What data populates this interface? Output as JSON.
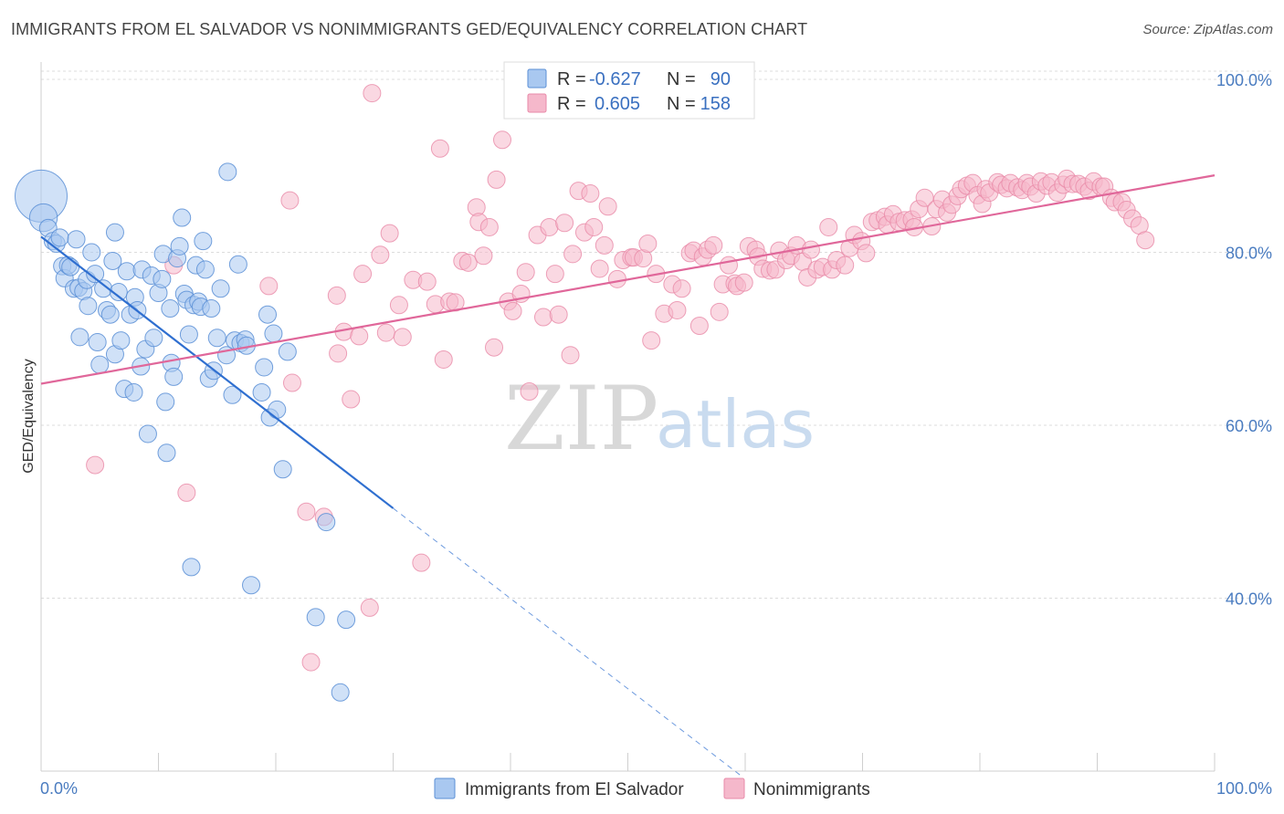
{
  "header": {
    "title": "IMMIGRANTS FROM EL SALVADOR VS NONIMMIGRANTS GED/EQUIVALENCY CORRELATION CHART",
    "source": "Source: ZipAtlas.com"
  },
  "legend": {
    "rows": [
      {
        "r_label": "R =",
        "r_value": "-0.627",
        "n_label": "N =",
        "n_value": "90",
        "color": "#a9c8f0"
      },
      {
        "r_label": "R =",
        "r_value": "0.605",
        "n_label": "N =",
        "n_value": "158",
        "color": "#f5b8cb"
      }
    ]
  },
  "bottom_legend": [
    {
      "label": "Immigrants from El Salvador",
      "color": "#a9c8f0"
    },
    {
      "label": "Nonimmigrants",
      "color": "#f5b8cb"
    }
  ],
  "watermark": {
    "zip": "ZIP",
    "atlas": "atlas"
  },
  "chart_data": {
    "type": "scatter",
    "title": "IMMIGRANTS FROM EL SALVADOR VS NONIMMIGRANTS GED/EQUIVALENCY CORRELATION CHART",
    "xlabel": "",
    "ylabel": "GED/Equivalency",
    "xlim": [
      0,
      100
    ],
    "ylim": [
      20,
      102
    ],
    "x_tick_labels": [
      "0.0%",
      "100.0%"
    ],
    "y_ticks": [
      40,
      60,
      80,
      100
    ],
    "y_tick_labels": [
      "40.0%",
      "60.0%",
      "80.0%",
      "100.0%"
    ],
    "grid": true,
    "legend_position": "top-center",
    "colors": {
      "blue_fill": "#a9c8f0",
      "blue_stroke": "#5b8fd6",
      "blue_line": "#2f6fd0",
      "pink_fill": "#f5b8cb",
      "pink_stroke": "#e88aa8",
      "pink_line": "#e0679a"
    },
    "series": [
      {
        "name": "Immigrants from El Salvador",
        "r": -0.627,
        "n": 90,
        "trend": {
          "x": [
            0,
            30
          ],
          "y": [
            81.8,
            50.4
          ],
          "dashed_to": [
            59.8,
            19.3
          ]
        },
        "points": [
          [
            0,
            86.5,
            3
          ],
          [
            0.2,
            84,
            1.6
          ],
          [
            0.6,
            82.8,
            1
          ],
          [
            1,
            81.3,
            1
          ],
          [
            1.3,
            81,
            1
          ],
          [
            1.6,
            81.7,
            1
          ],
          [
            1.8,
            78.4,
            1
          ],
          [
            2,
            77,
            1
          ],
          [
            2.3,
            78.5,
            1
          ],
          [
            2.5,
            78.3,
            1
          ],
          [
            2.8,
            75.8,
            1
          ],
          [
            3,
            81.5,
            1
          ],
          [
            3.2,
            75.9,
            1
          ],
          [
            3.6,
            75.5,
            1
          ],
          [
            3.3,
            70.2,
            1
          ],
          [
            3.9,
            76.8,
            1
          ],
          [
            4,
            73.8,
            1
          ],
          [
            4.3,
            80,
            1
          ],
          [
            4.6,
            77.5,
            1
          ],
          [
            4.8,
            69.6,
            1
          ],
          [
            5,
            67,
            1
          ],
          [
            5.3,
            75.8,
            1
          ],
          [
            5.6,
            73.3,
            1
          ],
          [
            5.9,
            72.8,
            1
          ],
          [
            6.1,
            79,
            1
          ],
          [
            6.3,
            68.2,
            1
          ],
          [
            6.6,
            75.4,
            1
          ],
          [
            6.3,
            82.3,
            1
          ],
          [
            6.8,
            69.8,
            1
          ],
          [
            7.1,
            64.2,
            1
          ],
          [
            7.3,
            77.8,
            1
          ],
          [
            7.6,
            72.8,
            1
          ],
          [
            7.9,
            63.8,
            1
          ],
          [
            8,
            74.8,
            1
          ],
          [
            8.2,
            73.3,
            1
          ],
          [
            8.5,
            66.8,
            1
          ],
          [
            8.6,
            78,
            1
          ],
          [
            8.9,
            68.8,
            1
          ],
          [
            9.1,
            59,
            1
          ],
          [
            9.4,
            77.3,
            1
          ],
          [
            9.6,
            70.1,
            1
          ],
          [
            10,
            75.3,
            1
          ],
          [
            10.3,
            76.9,
            1
          ],
          [
            10.4,
            79.8,
            1
          ],
          [
            10.6,
            62.7,
            1
          ],
          [
            10.7,
            56.8,
            1
          ],
          [
            11,
            73.5,
            1
          ],
          [
            11.1,
            67.2,
            1
          ],
          [
            11.3,
            65.6,
            1
          ],
          [
            11.6,
            79.3,
            1
          ],
          [
            11.8,
            80.7,
            1
          ],
          [
            12,
            84,
            1
          ],
          [
            12.2,
            75.2,
            1
          ],
          [
            12.4,
            74.5,
            1
          ],
          [
            12.6,
            70.5,
            1
          ],
          [
            12.8,
            43.6,
            1
          ],
          [
            13,
            73.9,
            1
          ],
          [
            13.2,
            78.5,
            1
          ],
          [
            13.4,
            74.3,
            1
          ],
          [
            13.6,
            73.7,
            1
          ],
          [
            13.8,
            81.3,
            1
          ],
          [
            14,
            78,
            1
          ],
          [
            14.3,
            65.4,
            1
          ],
          [
            14.5,
            73.5,
            1
          ],
          [
            14.7,
            66.3,
            1
          ],
          [
            15,
            70.1,
            1
          ],
          [
            15.3,
            75.8,
            1
          ],
          [
            15.8,
            68.1,
            1
          ],
          [
            15.9,
            89.3,
            1
          ],
          [
            16.3,
            63.5,
            1
          ],
          [
            16.5,
            69.8,
            1
          ],
          [
            16.8,
            78.6,
            1
          ],
          [
            17,
            69.5,
            1
          ],
          [
            17.4,
            69.9,
            1
          ],
          [
            17.5,
            69.2,
            1
          ],
          [
            17.9,
            41.5,
            1
          ],
          [
            18.8,
            63.8,
            1
          ],
          [
            19,
            66.7,
            1
          ],
          [
            19.3,
            72.8,
            1
          ],
          [
            19.5,
            60.9,
            1
          ],
          [
            19.8,
            70.6,
            1
          ],
          [
            20.1,
            61.8,
            1
          ],
          [
            20.6,
            54.9,
            1
          ],
          [
            21,
            68.5,
            1
          ],
          [
            23.4,
            37.8,
            1
          ],
          [
            24.3,
            48.8,
            1
          ],
          [
            25.5,
            29.1,
            1
          ],
          [
            26,
            37.5,
            1
          ]
        ]
      },
      {
        "name": "Nonimmigrants",
        "r": 0.605,
        "n": 158,
        "trend": {
          "x": [
            0,
            100
          ],
          "y": [
            64.8,
            88.9
          ]
        },
        "points": [
          [
            4.6,
            55.4
          ],
          [
            11.3,
            78.5
          ],
          [
            12.4,
            52.2
          ],
          [
            19.4,
            76.1
          ],
          [
            21.2,
            86
          ],
          [
            21.4,
            64.9
          ],
          [
            22.6,
            50
          ],
          [
            23,
            32.6
          ],
          [
            24.1,
            49.4
          ],
          [
            25.2,
            75
          ],
          [
            25.3,
            68.3
          ],
          [
            25.8,
            70.8
          ],
          [
            26.4,
            63
          ],
          [
            27.1,
            70.3
          ],
          [
            27.4,
            77.5
          ],
          [
            28,
            38.9
          ],
          [
            28.2,
            98.4
          ],
          [
            28.9,
            79.7
          ],
          [
            29.4,
            70.7
          ],
          [
            29.7,
            82.2
          ],
          [
            30.5,
            73.9
          ],
          [
            30.8,
            70.2
          ],
          [
            31.7,
            76.8
          ],
          [
            32.4,
            44.1
          ],
          [
            32.9,
            76.6
          ],
          [
            33.6,
            74
          ],
          [
            34,
            92
          ],
          [
            34.3,
            67.6
          ],
          [
            34.8,
            74.3
          ],
          [
            35.3,
            74.2
          ],
          [
            35.9,
            79
          ],
          [
            36.4,
            78.8
          ],
          [
            37.1,
            85.2
          ],
          [
            37.3,
            83.5
          ],
          [
            37.7,
            79.6
          ],
          [
            38.2,
            82.9
          ],
          [
            38.6,
            69
          ],
          [
            38.8,
            88.4
          ],
          [
            39.3,
            93
          ],
          [
            39.8,
            74.3
          ],
          [
            40.2,
            73.2
          ],
          [
            40.9,
            75.2
          ],
          [
            41.3,
            77.7
          ],
          [
            41.6,
            63.9
          ],
          [
            42.3,
            82
          ],
          [
            42.8,
            72.5
          ],
          [
            43.3,
            82.9
          ],
          [
            43.8,
            77.5
          ],
          [
            44.1,
            72.8
          ],
          [
            44.6,
            83.4
          ],
          [
            45.1,
            68.1
          ],
          [
            45.3,
            79.8
          ],
          [
            45.8,
            87.1
          ],
          [
            46.3,
            82.3
          ],
          [
            46.8,
            86.8
          ],
          [
            47.1,
            82.9
          ],
          [
            47.6,
            78.1
          ],
          [
            48,
            80.8
          ],
          [
            48.3,
            85.3
          ],
          [
            49.1,
            76.9
          ],
          [
            49.6,
            79.1
          ],
          [
            50.3,
            79.4
          ],
          [
            50.5,
            79.4
          ],
          [
            51.3,
            79.3
          ],
          [
            51.7,
            81
          ],
          [
            52,
            69.8
          ],
          [
            52.4,
            77.5
          ],
          [
            53.1,
            72.9
          ],
          [
            53.8,
            76.3
          ],
          [
            54.2,
            73.3
          ],
          [
            54.6,
            75.8
          ],
          [
            55.3,
            79.9
          ],
          [
            55.6,
            80.2
          ],
          [
            56.1,
            71.5
          ],
          [
            56.4,
            79.5
          ],
          [
            56.8,
            80.3
          ],
          [
            57.3,
            80.8
          ],
          [
            57.8,
            73.1
          ],
          [
            58.1,
            76.3
          ],
          [
            58.6,
            78.5
          ],
          [
            59.1,
            76.4
          ],
          [
            59.3,
            76.1
          ],
          [
            59.9,
            76.5
          ],
          [
            60.3,
            80.7
          ],
          [
            60.9,
            80.3
          ],
          [
            61.1,
            79.5
          ],
          [
            61.5,
            78.1
          ],
          [
            62.1,
            77.9
          ],
          [
            62.6,
            78
          ],
          [
            62.9,
            80.2
          ],
          [
            63.5,
            79.1
          ],
          [
            63.9,
            79.6
          ],
          [
            64.4,
            80.8
          ],
          [
            64.9,
            78.9
          ],
          [
            65.3,
            77.1
          ],
          [
            65.6,
            80.3
          ],
          [
            66.1,
            78
          ],
          [
            66.6,
            78.3
          ],
          [
            67.1,
            82.9
          ],
          [
            67.4,
            78
          ],
          [
            67.8,
            79.1
          ],
          [
            68.5,
            78.5
          ],
          [
            68.9,
            80.5
          ],
          [
            69.3,
            82
          ],
          [
            69.9,
            81.3
          ],
          [
            70.3,
            79.9
          ],
          [
            70.8,
            83.5
          ],
          [
            71.3,
            83.7
          ],
          [
            71.9,
            84.1
          ],
          [
            72.1,
            83.2
          ],
          [
            72.6,
            84.4
          ],
          [
            73.1,
            83.5
          ],
          [
            73.6,
            83.7
          ],
          [
            74.2,
            83.8
          ],
          [
            74.4,
            82.9
          ],
          [
            74.8,
            85
          ],
          [
            75.3,
            86.3
          ],
          [
            75.9,
            83
          ],
          [
            76.3,
            85
          ],
          [
            76.8,
            86.1
          ],
          [
            77.2,
            84.6
          ],
          [
            77.6,
            85.5
          ],
          [
            78.1,
            86.5
          ],
          [
            78.4,
            87.3
          ],
          [
            78.9,
            87.7
          ],
          [
            79.4,
            88
          ],
          [
            79.8,
            86.6
          ],
          [
            80.2,
            85.6
          ],
          [
            80.5,
            87.3
          ],
          [
            80.8,
            86.9
          ],
          [
            81.5,
            88.1
          ],
          [
            81.8,
            87.8
          ],
          [
            82.3,
            87.4
          ],
          [
            82.6,
            88
          ],
          [
            83.2,
            87.5
          ],
          [
            83.6,
            87.2
          ],
          [
            84,
            88
          ],
          [
            84.3,
            87.6
          ],
          [
            84.8,
            86.8
          ],
          [
            85.2,
            88.2
          ],
          [
            85.7,
            87.7
          ],
          [
            86.1,
            88.1
          ],
          [
            86.6,
            86.9
          ],
          [
            87.1,
            87.8
          ],
          [
            87.4,
            88.5
          ],
          [
            87.9,
            87.9
          ],
          [
            88.4,
            87.9
          ],
          [
            88.9,
            87.6
          ],
          [
            89.3,
            87.1
          ],
          [
            89.7,
            88.2
          ],
          [
            90.3,
            87.6
          ],
          [
            90.6,
            87.6
          ],
          [
            91.2,
            86.3
          ],
          [
            91.5,
            85.8
          ],
          [
            92.1,
            85.8
          ],
          [
            92.5,
            84.9
          ],
          [
            93,
            83.9
          ],
          [
            93.6,
            83.1
          ],
          [
            94.1,
            81.4
          ]
        ]
      }
    ]
  }
}
